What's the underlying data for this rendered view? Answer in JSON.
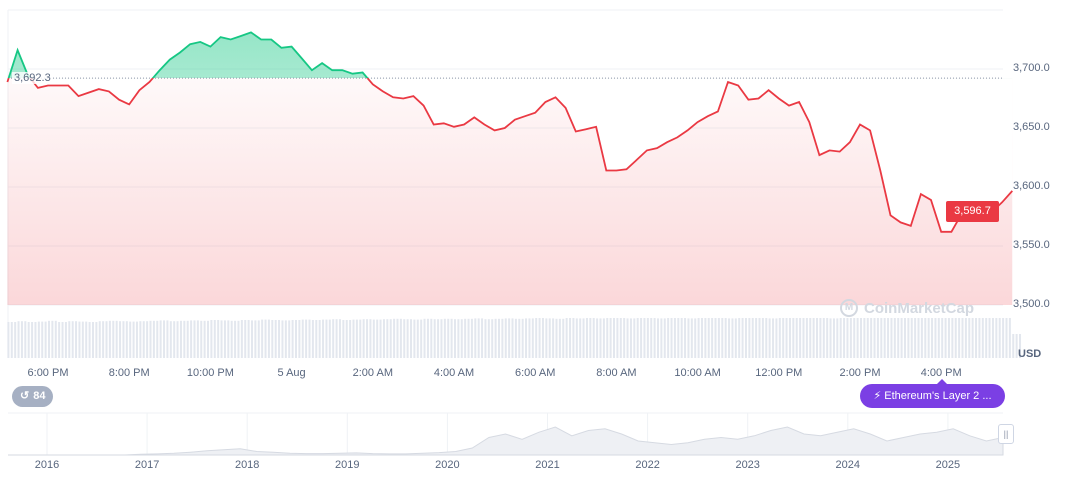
{
  "chart_data": {
    "type": "line",
    "currency": "USD",
    "reference_price": 3692.3,
    "reference_label": "3,692.3",
    "current_price_label": "3,596.7",
    "series_start": "17:00",
    "interval_minutes": 15,
    "prices": [
      3689,
      3716,
      3695,
      3684,
      3686,
      3686,
      3686,
      3677,
      3680,
      3683,
      3681,
      3674,
      3670,
      3682,
      3689,
      3699,
      3708,
      3714,
      3721,
      3723,
      3719,
      3727,
      3725,
      3728,
      3731,
      3725,
      3725,
      3718,
      3719,
      3709,
      3699,
      3705,
      3699,
      3699,
      3696,
      3697,
      3687,
      3681,
      3676,
      3675,
      3677,
      3669,
      3653,
      3654,
      3651,
      3653,
      3659,
      3653,
      3648,
      3650,
      3657,
      3660,
      3663,
      3672,
      3676,
      3667,
      3647,
      3649,
      3651,
      3614,
      3614,
      3615,
      3623,
      3631,
      3633,
      3638,
      3642,
      3648,
      3655,
      3660,
      3664,
      3689,
      3686,
      3674,
      3675,
      3682,
      3675,
      3669,
      3672,
      3655,
      3627,
      3631,
      3630,
      3638,
      3653,
      3648,
      3614,
      3576,
      3570,
      3567,
      3594,
      3589,
      3562,
      3562,
      3577,
      3581,
      3584,
      3579,
      3587,
      3596.7
    ],
    "volume_relative": [
      0.9,
      0.92,
      0.9,
      0.91,
      0.93,
      0.9,
      0.92,
      0.91,
      0.9,
      0.92,
      0.93,
      0.92,
      0.91,
      0.92,
      0.93,
      0.94,
      0.92,
      0.93,
      0.94,
      0.93,
      0.95,
      0.94,
      0.93,
      0.95,
      0.94,
      0.96,
      0.95,
      0.94,
      0.95,
      0.96,
      0.95,
      0.96,
      0.97,
      0.95,
      0.96,
      0.97,
      0.96,
      0.97,
      0.98,
      0.97,
      0.96,
      0.98,
      0.97,
      0.98,
      0.97,
      0.98,
      0.99,
      0.97,
      0.98,
      0.99,
      0.98,
      0.99,
      1.0,
      0.99,
      0.98,
      1.0,
      0.99,
      1.0,
      0.99,
      1.0,
      1.0,
      0.99,
      1.0,
      1.0,
      0.99,
      1.0,
      1.0,
      0.99,
      1.0,
      1.0,
      1.0,
      0.99,
      1.0,
      1.0,
      1.0,
      0.99,
      1.0,
      1.0,
      1.0,
      1.0,
      1.0,
      0.99,
      1.0,
      1.0,
      1.0,
      1.0,
      1.0,
      1.0,
      1.0,
      1.0,
      1.0,
      1.0,
      1.0,
      1.0,
      1.0,
      1.0,
      1.0,
      1.0,
      1.0,
      0.6
    ],
    "y_ticks": [
      {
        "v": 3700,
        "label": "3,700.0"
      },
      {
        "v": 3650,
        "label": "3,650.0"
      },
      {
        "v": 3600,
        "label": "3,600.0"
      },
      {
        "v": 3550,
        "label": "3,550.0"
      },
      {
        "v": 3500,
        "label": "3,500.0"
      }
    ],
    "ylim": [
      3500,
      3700
    ],
    "x_ticks": [
      {
        "t": "18:00",
        "label": "6:00 PM"
      },
      {
        "t": "20:00",
        "label": "8:00 PM"
      },
      {
        "t": "22:00",
        "label": "10:00 PM"
      },
      {
        "t": "24:00",
        "label": "5 Aug"
      },
      {
        "t": "26:00",
        "label": "2:00 AM"
      },
      {
        "t": "28:00",
        "label": "4:00 AM"
      },
      {
        "t": "30:00",
        "label": "6:00 AM"
      },
      {
        "t": "32:00",
        "label": "8:00 AM"
      },
      {
        "t": "34:00",
        "label": "10:00 AM"
      },
      {
        "t": "36:00",
        "label": "12:00 PM"
      },
      {
        "t": "38:00",
        "label": "2:00 PM"
      },
      {
        "t": "40:00",
        "label": "4:00 PM"
      }
    ],
    "grid": true,
    "colors": {
      "up": "#16c784",
      "down": "#ea3943",
      "volume": "#e3e7ee",
      "grid": "#eff2f5"
    },
    "navigator": {
      "years": [
        "2016",
        "2017",
        "2018",
        "2019",
        "2020",
        "2021",
        "2022",
        "2023",
        "2024",
        "2025"
      ],
      "values": [
        0,
        0,
        0,
        0,
        0,
        0,
        0,
        0,
        0.02,
        0.03,
        0.05,
        0.08,
        0.12,
        0.15,
        0.18,
        0.1,
        0.08,
        0.05,
        0.04,
        0.04,
        0.05,
        0.06,
        0.04,
        0.03,
        0.03,
        0.05,
        0.07,
        0.1,
        0.2,
        0.5,
        0.6,
        0.45,
        0.65,
        0.8,
        0.55,
        0.7,
        0.75,
        0.6,
        0.4,
        0.35,
        0.3,
        0.35,
        0.45,
        0.5,
        0.45,
        0.55,
        0.7,
        0.8,
        0.6,
        0.55,
        0.65,
        0.75,
        0.6,
        0.4,
        0.5,
        0.6,
        0.65,
        0.75,
        0.55,
        0.4,
        0.5
      ]
    }
  },
  "watermark": "CoinMarketCap",
  "axis_unit": "USD",
  "badge": {
    "icon": "history-icon",
    "count": "84"
  },
  "news": {
    "icon": "lightning-icon",
    "label": "Ethereum's Layer 2 ..."
  }
}
